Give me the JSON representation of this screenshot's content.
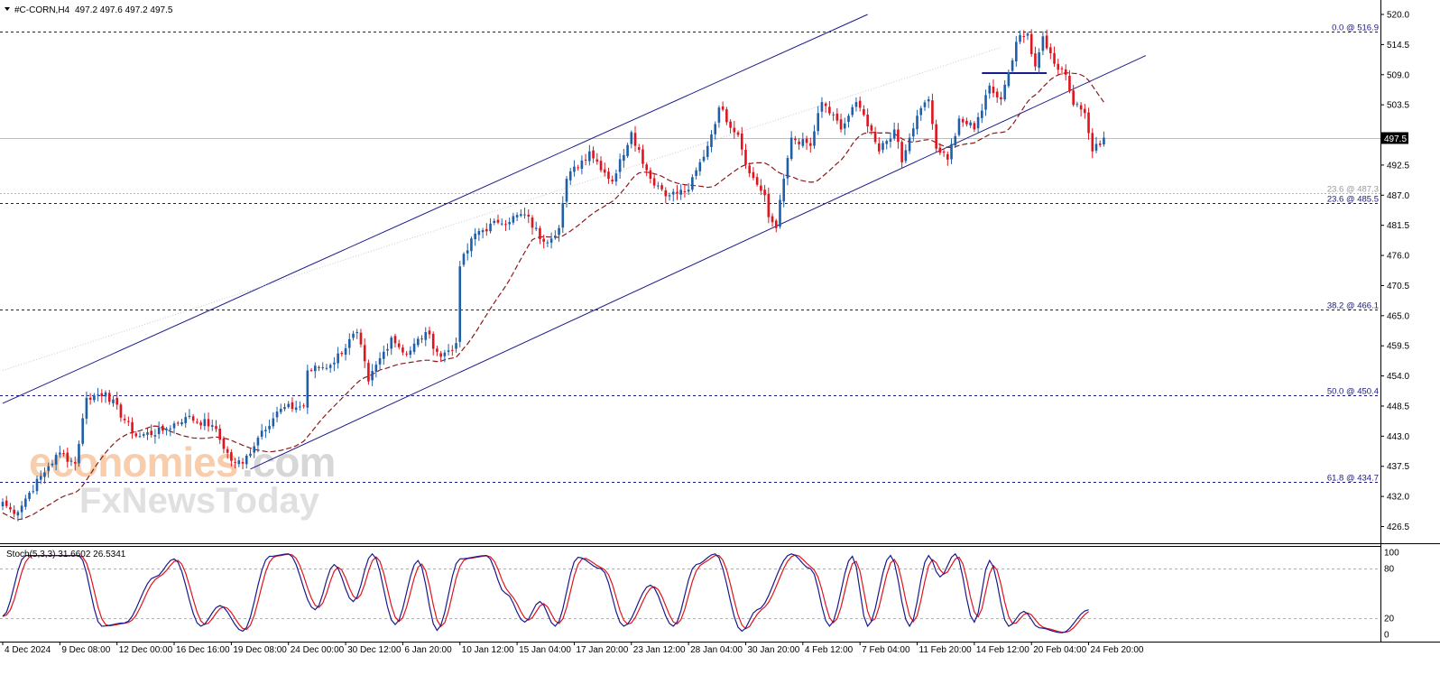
{
  "header": {
    "symbol": "#C-CORN,H4",
    "ohlc": "497.2 497.6 497.2 497.5"
  },
  "watermark": {
    "word1": "economies",
    "word2": ".com",
    "word3": "FxNewsToday"
  },
  "stoch": {
    "label": "Stoch(5,3,3) 31.6602 26.5341",
    "yticks": [
      {
        "value": 100,
        "label": "100"
      },
      {
        "value": 80,
        "label": "80"
      },
      {
        "value": 20,
        "label": "20"
      },
      {
        "value": 0,
        "label": "0"
      }
    ],
    "levels": [
      80,
      20
    ]
  },
  "colors": {
    "bull": "#1f5fa8",
    "bear": "#e0141e",
    "ma": "#8b1a1a",
    "channel": "#1a1a8c",
    "fib": "#1a1a7a",
    "stoch_main": "#1a1a8c",
    "stoch_signal": "#e0141e"
  },
  "chart_data": {
    "type": "candlestick",
    "symbol": "#C-CORN",
    "timeframe": "H4",
    "ylim": [
      426.5,
      520.0
    ],
    "price_ticks": [
      {
        "value": 520.0,
        "label": "520.0"
      },
      {
        "value": 514.5,
        "label": "514.5"
      },
      {
        "value": 509.0,
        "label": "509.0"
      },
      {
        "value": 503.5,
        "label": "503.5"
      },
      {
        "value": 492.5,
        "label": "492.5"
      },
      {
        "value": 487.0,
        "label": "487.0"
      },
      {
        "value": 481.5,
        "label": "481.5"
      },
      {
        "value": 476.0,
        "label": "476.0"
      },
      {
        "value": 470.5,
        "label": "470.5"
      },
      {
        "value": 465.0,
        "label": "465.0"
      },
      {
        "value": 459.5,
        "label": "459.5"
      },
      {
        "value": 454.0,
        "label": "454.0"
      },
      {
        "value": 448.5,
        "label": "448.5"
      },
      {
        "value": 443.0,
        "label": "443.0"
      },
      {
        "value": 437.5,
        "label": "437.5"
      },
      {
        "value": 432.0,
        "label": "432.0"
      },
      {
        "value": 426.5,
        "label": "426.5"
      }
    ],
    "current_price": {
      "value": 497.5,
      "label": "497.5"
    },
    "x_labels": [
      {
        "bar": 0,
        "label": "4 Dec 2024"
      },
      {
        "bar": 15,
        "label": "9 Dec 08:00"
      },
      {
        "bar": 30,
        "label": "12 Dec 00:00"
      },
      {
        "bar": 45,
        "label": "16 Dec 16:00"
      },
      {
        "bar": 60,
        "label": "19 Dec 08:00"
      },
      {
        "bar": 75,
        "label": "24 Dec 00:00"
      },
      {
        "bar": 90,
        "label": "30 Dec 12:00"
      },
      {
        "bar": 105,
        "label": "6 Jan 20:00"
      },
      {
        "bar": 120,
        "label": "10 Jan 12:00"
      },
      {
        "bar": 135,
        "label": "15 Jan 04:00"
      },
      {
        "bar": 150,
        "label": "17 Jan 20:00"
      },
      {
        "bar": 165,
        "label": "23 Jan 12:00"
      },
      {
        "bar": 180,
        "label": "28 Jan 04:00"
      },
      {
        "bar": 195,
        "label": "30 Jan 20:00"
      },
      {
        "bar": 210,
        "label": "4 Feb 12:00"
      },
      {
        "bar": 225,
        "label": "7 Feb 04:00"
      },
      {
        "bar": 240,
        "label": "11 Feb 20:00"
      },
      {
        "bar": 255,
        "label": "14 Feb 12:00"
      },
      {
        "bar": 270,
        "label": "20 Feb 04:00"
      },
      {
        "bar": 285,
        "label": "24 Feb 20:00"
      }
    ],
    "fib_levels": [
      {
        "value": 516.9,
        "label": "0.0 @ 516.9"
      },
      {
        "value": 487.3,
        "label": "23.6 @ 487.3",
        "style": "faint"
      },
      {
        "value": 485.5,
        "label": "23.6 @ 485.5"
      },
      {
        "value": 466.1,
        "label": "38.2 @ 466.1"
      },
      {
        "value": 450.4,
        "label": "50.0 @ 450.4"
      },
      {
        "value": 434.7,
        "label": "61.8 @ 434.7"
      }
    ],
    "channel": {
      "upper": [
        {
          "bar": 0,
          "price": 449.0
        },
        {
          "bar": 227,
          "price": 520.0
        }
      ],
      "lower": [
        {
          "bar": 65,
          "price": 437.0
        },
        {
          "bar": 300,
          "price": 512.5
        }
      ]
    },
    "support_segment": {
      "from_bar": 257,
      "to_bar": 274,
      "price": 509.3
    },
    "anchors": [
      {
        "bar": 0,
        "price": 431.0
      },
      {
        "bar": 3,
        "price": 428.8
      },
      {
        "bar": 12,
        "price": 437.5
      },
      {
        "bar": 15,
        "price": 440.0
      },
      {
        "bar": 19,
        "price": 438.0
      },
      {
        "bar": 22,
        "price": 450.0
      },
      {
        "bar": 27,
        "price": 451.0
      },
      {
        "bar": 35,
        "price": 443.0
      },
      {
        "bar": 42,
        "price": 444.0
      },
      {
        "bar": 48,
        "price": 446.5
      },
      {
        "bar": 55,
        "price": 445.0
      },
      {
        "bar": 60,
        "price": 438.5
      },
      {
        "bar": 63,
        "price": 438.0
      },
      {
        "bar": 68,
        "price": 444.0
      },
      {
        "bar": 73,
        "price": 448.0
      },
      {
        "bar": 79,
        "price": 448.5
      },
      {
        "bar": 80,
        "price": 455.0
      },
      {
        "bar": 86,
        "price": 456.0
      },
      {
        "bar": 93,
        "price": 462.0
      },
      {
        "bar": 96,
        "price": 453.0
      },
      {
        "bar": 102,
        "price": 461.0
      },
      {
        "bar": 106,
        "price": 458.0
      },
      {
        "bar": 111,
        "price": 462.0
      },
      {
        "bar": 115,
        "price": 457.5
      },
      {
        "bar": 119,
        "price": 460.0
      },
      {
        "bar": 120,
        "price": 474.0
      },
      {
        "bar": 124,
        "price": 480.0
      },
      {
        "bar": 130,
        "price": 482.0
      },
      {
        "bar": 137,
        "price": 483.5
      },
      {
        "bar": 142,
        "price": 478.5
      },
      {
        "bar": 146,
        "price": 481.0
      },
      {
        "bar": 148,
        "price": 490.0
      },
      {
        "bar": 154,
        "price": 495.0
      },
      {
        "bar": 160,
        "price": 489.5
      },
      {
        "bar": 165,
        "price": 498.5
      },
      {
        "bar": 170,
        "price": 490.0
      },
      {
        "bar": 175,
        "price": 487.0
      },
      {
        "bar": 180,
        "price": 488.0
      },
      {
        "bar": 185,
        "price": 496.0
      },
      {
        "bar": 188,
        "price": 503.0
      },
      {
        "bar": 193,
        "price": 498.0
      },
      {
        "bar": 196,
        "price": 491.0
      },
      {
        "bar": 200,
        "price": 487.0
      },
      {
        "bar": 201,
        "price": 483.0
      },
      {
        "bar": 203,
        "price": 481.0
      },
      {
        "bar": 205,
        "price": 490.0
      },
      {
        "bar": 207,
        "price": 497.5
      },
      {
        "bar": 212,
        "price": 496.0
      },
      {
        "bar": 215,
        "price": 504.0
      },
      {
        "bar": 220,
        "price": 499.0
      },
      {
        "bar": 224,
        "price": 504.0
      },
      {
        "bar": 230,
        "price": 495.0
      },
      {
        "bar": 234,
        "price": 499.0
      },
      {
        "bar": 236,
        "price": 493.0
      },
      {
        "bar": 240,
        "price": 501.5
      },
      {
        "bar": 243,
        "price": 504.5
      },
      {
        "bar": 245,
        "price": 495.5
      },
      {
        "bar": 248,
        "price": 493.5
      },
      {
        "bar": 251,
        "price": 501.0
      },
      {
        "bar": 255,
        "price": 499.0
      },
      {
        "bar": 259,
        "price": 507.0
      },
      {
        "bar": 262,
        "price": 504.5
      },
      {
        "bar": 266,
        "price": 515.0
      },
      {
        "bar": 269,
        "price": 516.5
      },
      {
        "bar": 271,
        "price": 510.5
      },
      {
        "bar": 273,
        "price": 516.0
      },
      {
        "bar": 276,
        "price": 511.0
      },
      {
        "bar": 279,
        "price": 509.0
      },
      {
        "bar": 281,
        "price": 503.5
      },
      {
        "bar": 284,
        "price": 502.0
      },
      {
        "bar": 286,
        "price": 495.0
      },
      {
        "bar": 289,
        "price": 497.5
      }
    ],
    "stoch_anchors": [
      {
        "bar": 0,
        "k": 22
      },
      {
        "bar": 6,
        "k": 96
      },
      {
        "bar": 20,
        "k": 96
      },
      {
        "bar": 26,
        "k": 10
      },
      {
        "bar": 32,
        "k": 14
      },
      {
        "bar": 40,
        "k": 70
      },
      {
        "bar": 45,
        "k": 92
      },
      {
        "bar": 52,
        "k": 10
      },
      {
        "bar": 57,
        "k": 35
      },
      {
        "bar": 63,
        "k": 4
      },
      {
        "bar": 70,
        "k": 95
      },
      {
        "bar": 75,
        "k": 98
      },
      {
        "bar": 82,
        "k": 30
      },
      {
        "bar": 87,
        "k": 85
      },
      {
        "bar": 92,
        "k": 40
      },
      {
        "bar": 97,
        "k": 98
      },
      {
        "bar": 103,
        "k": 12
      },
      {
        "bar": 109,
        "k": 90
      },
      {
        "bar": 114,
        "k": 5
      },
      {
        "bar": 120,
        "k": 92
      },
      {
        "bar": 127,
        "k": 96
      },
      {
        "bar": 132,
        "k": 50
      },
      {
        "bar": 137,
        "k": 15
      },
      {
        "bar": 141,
        "k": 40
      },
      {
        "bar": 145,
        "k": 10
      },
      {
        "bar": 151,
        "k": 94
      },
      {
        "bar": 157,
        "k": 80
      },
      {
        "bar": 163,
        "k": 10
      },
      {
        "bar": 170,
        "k": 60
      },
      {
        "bar": 176,
        "k": 10
      },
      {
        "bar": 182,
        "k": 85
      },
      {
        "bar": 187,
        "k": 98
      },
      {
        "bar": 194,
        "k": 4
      },
      {
        "bar": 198,
        "k": 30
      },
      {
        "bar": 207,
        "k": 98
      },
      {
        "bar": 212,
        "k": 80
      },
      {
        "bar": 217,
        "k": 10
      },
      {
        "bar": 223,
        "k": 95
      },
      {
        "bar": 227,
        "k": 10
      },
      {
        "bar": 233,
        "k": 96
      },
      {
        "bar": 238,
        "k": 10
      },
      {
        "bar": 243,
        "k": 96
      },
      {
        "bar": 246,
        "k": 70
      },
      {
        "bar": 250,
        "k": 98
      },
      {
        "bar": 255,
        "k": 15
      },
      {
        "bar": 259,
        "k": 90
      },
      {
        "bar": 264,
        "k": 10
      },
      {
        "bar": 268,
        "k": 28
      },
      {
        "bar": 272,
        "k": 8
      },
      {
        "bar": 278,
        "k": 2
      },
      {
        "bar": 285,
        "k": 30
      }
    ]
  }
}
